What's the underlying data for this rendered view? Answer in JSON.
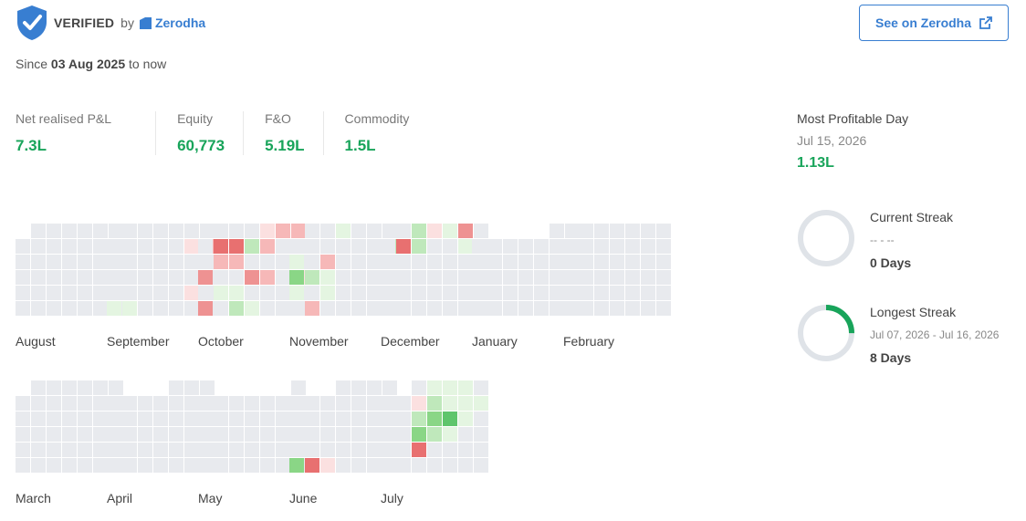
{
  "header": {
    "verified_label": "VERIFIED",
    "by_label": "by",
    "broker_name": "Zerodha",
    "see_button_label": "See on Zerodha",
    "shield_icon": "verified-shield-icon",
    "external_icon": "external-link-icon"
  },
  "period": {
    "prefix": "Since",
    "start_date": "03 Aug 2025",
    "suffix": "to now"
  },
  "stats": [
    {
      "label": "Net realised P&L",
      "value": "7.3L"
    },
    {
      "label": "Equity",
      "value": "60,773"
    },
    {
      "label": "F&O",
      "value": "5.19L"
    },
    {
      "label": "Commodity",
      "value": "1.5L"
    }
  ],
  "most_profitable": {
    "title": "Most Profitable Day",
    "date": "Jul 15, 2026",
    "value": "1.13L"
  },
  "current_streak": {
    "title": "Current Streak",
    "range": "-- - --",
    "value": "0 Days",
    "progress": 0
  },
  "longest_streak": {
    "title": "Longest Streak",
    "range": "Jul 07, 2026 - Jul 16, 2026",
    "value": "8 Days",
    "progress": 0.25
  },
  "colors": {
    "empty": "#e8eaee",
    "neutral": "#f7f7f7",
    "profit1": "#e4f5e1",
    "profit2": "#bfe8bb",
    "profit3": "#8ad686",
    "profit4": "#5fc56c",
    "loss1": "#fbe0e0",
    "loss2": "#f6b8b8",
    "loss3": "#ee9292",
    "loss4": "#e87070",
    "accent": "#387ed1",
    "green": "#18a45a",
    "ring": "#dfe3e8"
  },
  "calendar": {
    "legend": {
      "0": "empty",
      "1": "profit1",
      "2": "profit2",
      "3": "profit3",
      "4": "profit4",
      "5": "loss1",
      "6": "loss2",
      "7": "loss3",
      "8": "loss4",
      "9": "neutral"
    },
    "months": [
      {
        "name": "August",
        "weeks": [
          "-000000",
          "0000000",
          "0000000",
          "0000000",
          "0000000",
          "0000000"
        ]
      },
      {
        "name": "September",
        "weeks": [
          "-000000",
          "0000056",
          "0000000",
          "0000000",
          "0000050",
          "1100000"
        ]
      },
      {
        "name": "October",
        "weeks": [
          "-000566",
          "0882600",
          "0660000",
          "7007605",
          "0110000",
          "7021000"
        ]
      },
      {
        "name": "November",
        "weeks": [
          "-001000",
          "0000002",
          "1060000",
          "3210000",
          "1010000",
          "0600000"
        ]
      },
      {
        "name": "December",
        "weeks": [
          "-025170",
          "0820010",
          "0000000",
          "0000000",
          "0000000",
          "0000000"
        ]
      },
      {
        "name": "January",
        "weeks": [
          "-----00",
          "0000000",
          "0000000",
          "0000000",
          "0000000",
          "0000000"
        ]
      },
      {
        "name": "February",
        "weeks": [
          "-000000",
          "0000000",
          "0000000",
          "0000000",
          "0000000",
          "0000000"
        ]
      },
      {
        "name": "March",
        "weeks": [
          "-000000",
          "0000000",
          "0000000",
          "0000000",
          "0000000",
          "0000000"
        ]
      },
      {
        "name": "April",
        "weeks": [
          "----000",
          "0000000",
          "0000000",
          "0000000",
          "0000000",
          "0000000"
        ]
      },
      {
        "name": "May",
        "weeks": [
          "------0",
          "0000000",
          "0000000",
          "0000000",
          "0000000",
          "0000000"
        ]
      },
      {
        "name": "June",
        "weeks": [
          "---0000",
          "0000000",
          "0000000",
          "0000000",
          "0000000",
          "3850000"
        ]
      },
      {
        "name": "July",
        "weeks": [
          "--01110",
          "0052111",
          "0023410",
          "0032100",
          "0080000",
          "0000000"
        ]
      }
    ]
  }
}
